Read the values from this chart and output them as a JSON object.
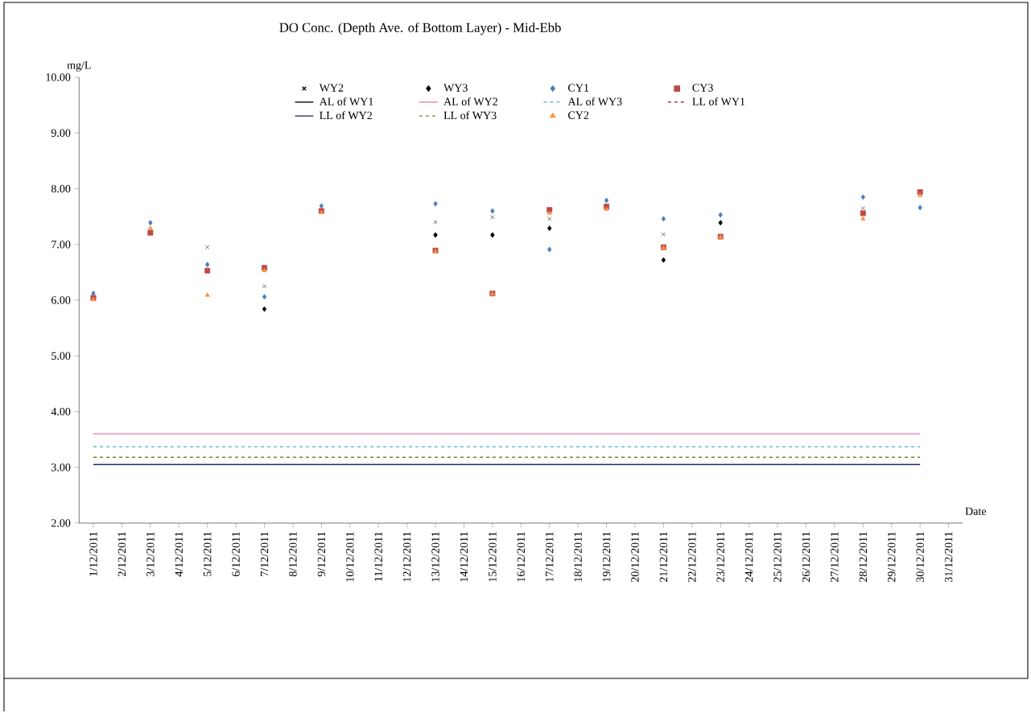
{
  "chart_data": {
    "type": "scatter",
    "title": "DO Conc. (Depth Ave. of Bottom Layer) - Mid-Ebb",
    "ylabel": "mg/L",
    "xlabel": "Date",
    "categories": [
      "1/12/2011",
      "2/12/2011",
      "3/12/2011",
      "4/12/2011",
      "5/12/2011",
      "6/12/2011",
      "7/12/2011",
      "8/12/2011",
      "9/12/2011",
      "10/12/2011",
      "11/12/2011",
      "12/12/2011",
      "13/12/2011",
      "14/12/2011",
      "15/12/2011",
      "16/12/2011",
      "17/12/2011",
      "18/12/2011",
      "19/12/2011",
      "20/12/2011",
      "21/12/2011",
      "22/12/2011",
      "23/12/2011",
      "24/12/2011",
      "25/12/2011",
      "26/12/2011",
      "27/12/2011",
      "28/12/2011",
      "29/12/2011",
      "30/12/2011",
      "31/12/2011"
    ],
    "ylim": [
      2,
      10
    ],
    "yticks": [
      {
        "value": 2,
        "label": "2.00"
      },
      {
        "value": 3,
        "label": "3.00"
      },
      {
        "value": 4,
        "label": "4.00"
      },
      {
        "value": 5,
        "label": "5.00"
      },
      {
        "value": 6,
        "label": "6.00"
      },
      {
        "value": 7,
        "label": "7.00"
      },
      {
        "value": 8,
        "label": "8.00"
      },
      {
        "value": 9,
        "label": "9.00"
      },
      {
        "value": 10,
        "label": "10.00"
      }
    ],
    "grid": false,
    "legend": "top",
    "series": [
      {
        "name": "WY2",
        "type": "scatter",
        "marker": "cross",
        "color": "#000000",
        "values": [
          null,
          null,
          null,
          null,
          6.95,
          null,
          6.25,
          null,
          null,
          null,
          null,
          null,
          7.4,
          null,
          7.49,
          null,
          7.46,
          null,
          null,
          null,
          7.18,
          null,
          null,
          null,
          null,
          null,
          null,
          7.65,
          null,
          null,
          null
        ]
      },
      {
        "name": "WY3",
        "type": "scatter",
        "marker": "diamond",
        "color": "#000000",
        "values": [
          null,
          null,
          null,
          null,
          null,
          null,
          5.84,
          null,
          null,
          null,
          null,
          null,
          7.17,
          null,
          7.17,
          null,
          7.29,
          null,
          null,
          null,
          6.72,
          null,
          7.39,
          null,
          null,
          null,
          null,
          null,
          null,
          null,
          null
        ]
      },
      {
        "name": "CY1",
        "type": "scatter",
        "marker": "diamond",
        "color": "#4a7ebb",
        "values": [
          6.12,
          null,
          7.39,
          null,
          6.64,
          null,
          6.06,
          null,
          7.69,
          null,
          null,
          null,
          7.73,
          null,
          7.6,
          null,
          6.91,
          null,
          7.79,
          null,
          7.46,
          null,
          7.53,
          null,
          null,
          null,
          null,
          7.85,
          null,
          7.66,
          null
        ]
      },
      {
        "name": "CY3",
        "type": "scatter",
        "marker": "square",
        "color": "#be4b48",
        "values": [
          6.04,
          null,
          7.21,
          null,
          6.53,
          null,
          6.58,
          null,
          7.6,
          null,
          null,
          null,
          6.89,
          null,
          6.12,
          null,
          7.62,
          null,
          7.68,
          null,
          6.95,
          null,
          7.14,
          null,
          null,
          null,
          null,
          7.56,
          null,
          7.94,
          null
        ]
      },
      {
        "name": "AL of WY1",
        "type": "line",
        "line_style": "solid",
        "color": "#000000",
        "values": [
          null,
          null,
          null,
          null,
          null,
          null,
          null,
          null,
          null,
          null,
          null,
          null,
          null,
          null,
          null,
          null,
          null,
          null,
          null,
          null,
          null,
          null,
          null,
          null,
          null,
          null,
          null,
          null,
          null,
          null,
          null
        ]
      },
      {
        "name": "AL of WY2",
        "type": "line",
        "line_style": "solid",
        "color": "#f078a8",
        "values": [
          3.6,
          3.6,
          3.6,
          3.6,
          3.6,
          3.6,
          3.6,
          3.6,
          3.6,
          3.6,
          3.6,
          3.6,
          3.6,
          3.6,
          3.6,
          3.6,
          3.6,
          3.6,
          3.6,
          3.6,
          3.6,
          3.6,
          3.6,
          3.6,
          3.6,
          3.6,
          3.6,
          3.6,
          3.6,
          3.6,
          null
        ]
      },
      {
        "name": "AL of WY3",
        "type": "line",
        "line_style": "dashed",
        "color": "#4bacc6",
        "values": [
          3.37,
          3.37,
          3.37,
          3.37,
          3.37,
          3.37,
          3.37,
          3.37,
          3.37,
          3.37,
          3.37,
          3.37,
          3.37,
          3.37,
          3.37,
          3.37,
          3.37,
          3.37,
          3.37,
          3.37,
          3.37,
          3.37,
          3.37,
          3.37,
          3.37,
          3.37,
          3.37,
          3.37,
          3.37,
          3.37,
          null
        ]
      },
      {
        "name": "LL of WY1",
        "type": "line",
        "line_style": "dashed",
        "color": "#8b1538",
        "values": [
          null,
          null,
          null,
          null,
          null,
          null,
          null,
          null,
          null,
          null,
          null,
          null,
          null,
          null,
          null,
          null,
          null,
          null,
          null,
          null,
          null,
          null,
          null,
          null,
          null,
          null,
          null,
          null,
          null,
          null,
          null
        ]
      },
      {
        "name": "LL of WY2",
        "type": "line",
        "line_style": "solid",
        "color": "#1f2a6e",
        "values": [
          3.05,
          3.05,
          3.05,
          3.05,
          3.05,
          3.05,
          3.05,
          3.05,
          3.05,
          3.05,
          3.05,
          3.05,
          3.05,
          3.05,
          3.05,
          3.05,
          3.05,
          3.05,
          3.05,
          3.05,
          3.05,
          3.05,
          3.05,
          3.05,
          3.05,
          3.05,
          3.05,
          3.05,
          3.05,
          3.05,
          null
        ]
      },
      {
        "name": "LL of WY3",
        "type": "line",
        "line_style": "dashed",
        "color": "#6b8e23",
        "values": [
          3.18,
          3.18,
          3.18,
          3.18,
          3.18,
          3.18,
          3.18,
          3.18,
          3.18,
          3.18,
          3.18,
          3.18,
          3.18,
          3.18,
          3.18,
          3.18,
          3.18,
          3.18,
          3.18,
          3.18,
          3.18,
          3.18,
          3.18,
          3.18,
          3.18,
          3.18,
          3.18,
          3.18,
          3.18,
          3.18,
          null
        ]
      },
      {
        "name": "CY2",
        "type": "scatter",
        "marker": "triangle",
        "color": "#f79646",
        "values": [
          6.01,
          null,
          7.29,
          null,
          6.09,
          null,
          6.53,
          null,
          7.57,
          null,
          null,
          null,
          6.87,
          null,
          6.11,
          null,
          7.56,
          null,
          7.63,
          null,
          6.94,
          null,
          7.13,
          null,
          null,
          null,
          null,
          7.46,
          null,
          7.88,
          null
        ]
      }
    ]
  }
}
